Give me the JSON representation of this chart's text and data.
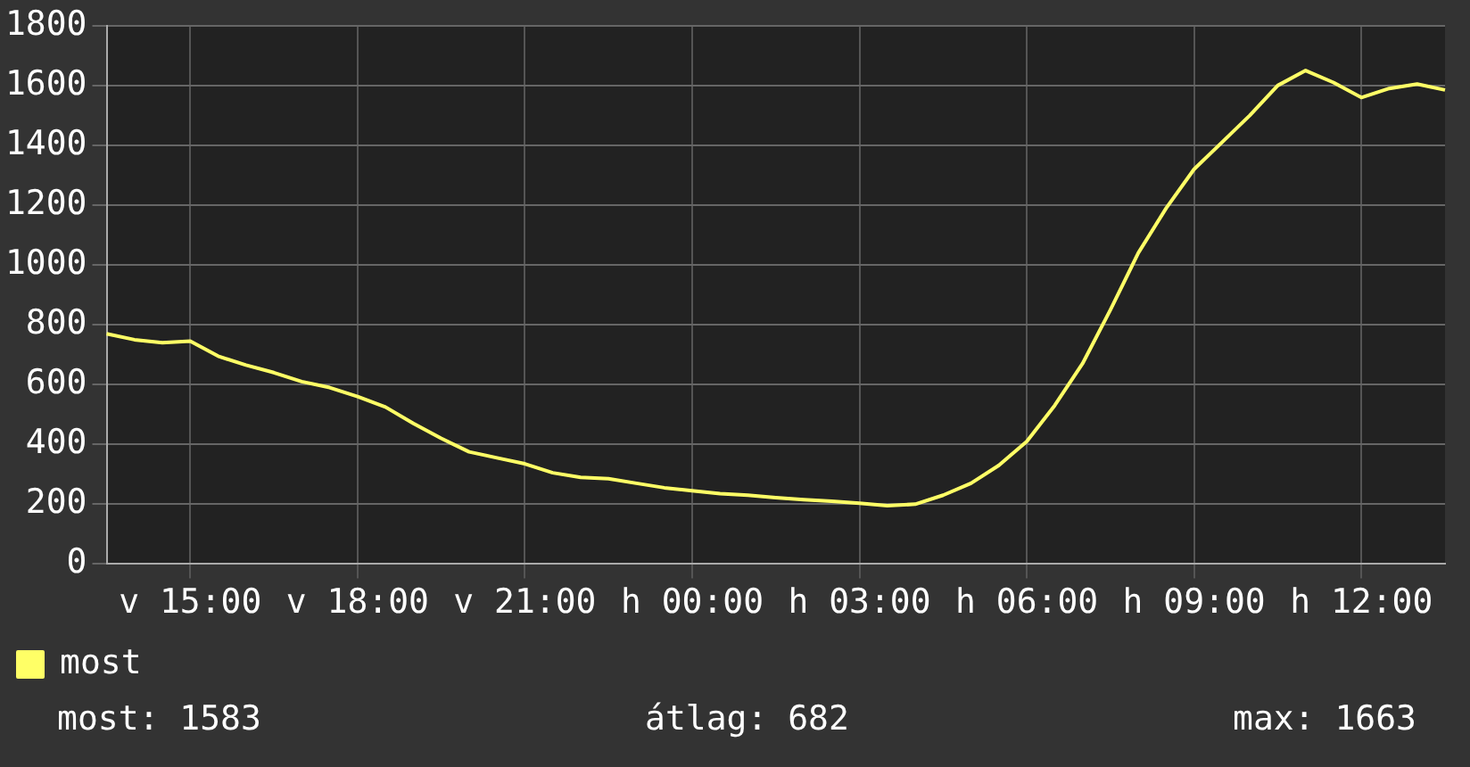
{
  "chart_data": {
    "type": "line",
    "categories": [
      null,
      null,
      null,
      "v 15:00",
      null,
      null,
      null,
      null,
      null,
      "v 18:00",
      null,
      null,
      null,
      null,
      null,
      "v 21:00",
      null,
      null,
      null,
      null,
      null,
      "h 00:00",
      null,
      null,
      null,
      null,
      null,
      "h 03:00",
      null,
      null,
      null,
      null,
      null,
      "h 06:00",
      null,
      null,
      null,
      null,
      null,
      "h 09:00",
      null,
      null,
      null,
      null,
      null,
      "h 12:00",
      null,
      null,
      null
    ],
    "series": [
      {
        "name": "most",
        "color": "#ffff66",
        "values": [
          770,
          750,
          740,
          745,
          695,
          665,
          640,
          610,
          590,
          560,
          525,
          470,
          420,
          375,
          355,
          335,
          305,
          290,
          285,
          270,
          255,
          245,
          235,
          230,
          222,
          215,
          210,
          203,
          195,
          200,
          230,
          270,
          330,
          410,
          530,
          670,
          850,
          1040,
          1190,
          1320,
          1410,
          1500,
          1600,
          1650,
          1610,
          1560,
          1590,
          1605,
          1585
        ]
      }
    ],
    "ylim": [
      0,
      1800
    ],
    "yticks": [
      0,
      200,
      400,
      600,
      800,
      1000,
      1200,
      1400,
      1600,
      1800
    ],
    "grid": true,
    "legend": "bottom",
    "marker": "none",
    "line_style": "solid",
    "annotations": [
      "most: 1583",
      "átlag: 682",
      "max: 1663"
    ]
  }
}
